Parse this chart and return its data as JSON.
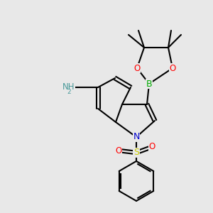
{
  "background_color": "#e8e8e8",
  "atom_colors": {
    "N": "#0000cd",
    "O": "#ff0000",
    "B": "#00aa00",
    "S": "#cccc00",
    "C": "#000000",
    "NH": "#4a9a9a"
  },
  "bond_lw": 1.5,
  "label_fs": 8.5
}
